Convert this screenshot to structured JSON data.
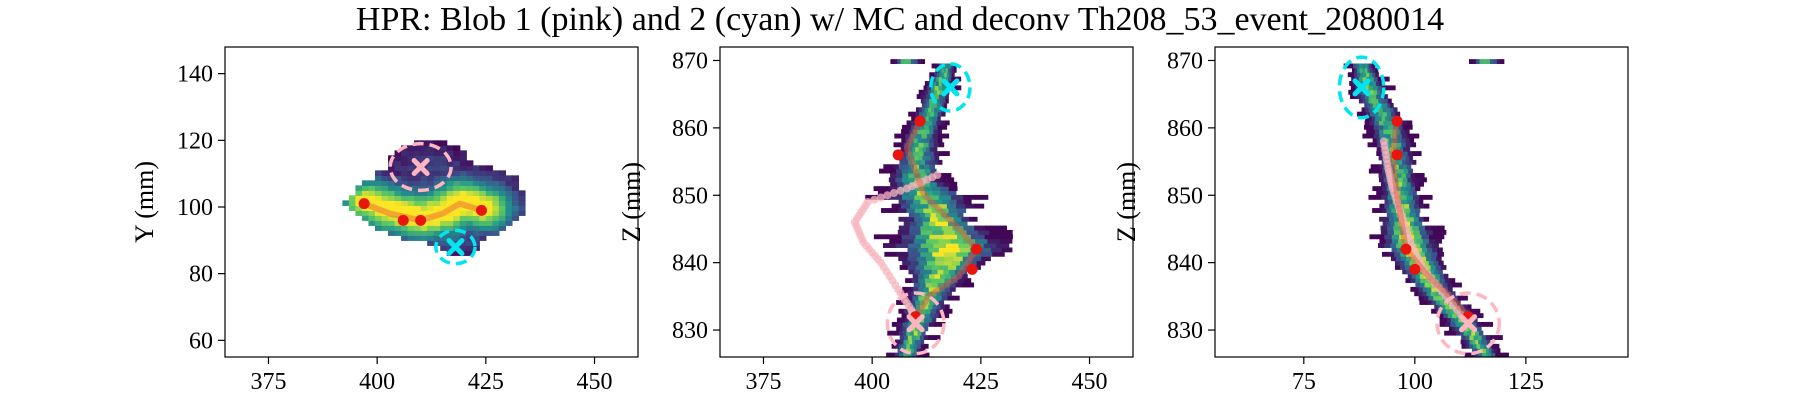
{
  "figure": {
    "title": "HPR: Blob 1 (pink) and 2 (cyan) w/ MC and deconv Th208_53_event_2080014"
  },
  "colors": {
    "blob1": "#ffb6c1",
    "blob2": "#00e5f0",
    "voxel_colormap": [
      "#440154",
      "#3b528b",
      "#21918c",
      "#5ec962",
      "#fde725"
    ],
    "hpr_track": "#e6553a",
    "mc_track": "#f7b6bd",
    "extremes": "#e8150f"
  },
  "chart_data": [
    {
      "type": "heatmap",
      "panel": "XY projection",
      "title": "",
      "xlabel": "",
      "ylabel": "Y (mm)",
      "xlim": [
        365,
        460
      ],
      "ylim": [
        55,
        148
      ],
      "xticks": [
        375,
        400,
        425,
        450
      ],
      "yticks": [
        60,
        80,
        100,
        120,
        140
      ],
      "voxel_region": {
        "x_range": [
          394,
          434
        ],
        "y_range": [
          86,
          118
        ]
      },
      "blob1": {
        "x": 410,
        "y": 112,
        "rx": 7,
        "ry": 7
      },
      "blob2": {
        "x": 418,
        "y": 88,
        "rx": 4.5,
        "ry": 5
      },
      "red_points": [
        [
          397,
          101
        ],
        [
          406,
          96
        ],
        [
          410,
          96
        ],
        [
          424,
          99
        ]
      ],
      "hpr_track": [
        [
          397,
          101
        ],
        [
          403,
          98
        ],
        [
          410,
          96
        ],
        [
          415,
          98
        ],
        [
          419,
          101
        ],
        [
          424,
          99
        ]
      ]
    },
    {
      "type": "heatmap",
      "panel": "XZ projection",
      "title": "",
      "xlabel": "",
      "ylabel": "Z (mm)",
      "xlim": [
        365,
        460
      ],
      "ylim": [
        826,
        872
      ],
      "xticks": [
        375,
        400,
        425,
        450
      ],
      "yticks": [
        830,
        840,
        850,
        860,
        870
      ],
      "blob1": {
        "x": 410,
        "y": 831,
        "rx": 6.5,
        "ry": 4.5
      },
      "blob2": {
        "x": 418,
        "y": 866,
        "rx": 4.5,
        "ry": 3.5
      },
      "red_points": [
        [
          411,
          861
        ],
        [
          406,
          856
        ],
        [
          424,
          842
        ],
        [
          423,
          839
        ],
        [
          410,
          832
        ]
      ],
      "hpr_track": [
        [
          411,
          861
        ],
        [
          408,
          857
        ],
        [
          412,
          850
        ],
        [
          420,
          845
        ],
        [
          424,
          842
        ],
        [
          420,
          838
        ],
        [
          413,
          835
        ],
        [
          410,
          832
        ]
      ],
      "mc_track": [
        [
          415,
          853
        ],
        [
          408,
          851
        ],
        [
          399,
          849
        ],
        [
          396,
          846
        ],
        [
          398,
          843
        ],
        [
          402,
          840
        ],
        [
          406,
          836
        ],
        [
          409,
          833
        ],
        [
          410,
          831
        ]
      ]
    },
    {
      "type": "heatmap",
      "panel": "YZ projection",
      "title": "",
      "xlabel": "",
      "ylabel": "Z (mm)",
      "xlim": [
        55,
        148
      ],
      "ylim": [
        826,
        872
      ],
      "xticks": [
        75,
        100,
        125
      ],
      "yticks": [
        830,
        840,
        850,
        860,
        870
      ],
      "blob1": {
        "x": 112,
        "y": 831,
        "rx": 7,
        "ry": 4.5
      },
      "blob2": {
        "x": 88,
        "y": 866,
        "rx": 5,
        "ry": 4.5
      },
      "red_points": [
        [
          96,
          861
        ],
        [
          96,
          856
        ],
        [
          98,
          842
        ],
        [
          100,
          839
        ],
        [
          112,
          832
        ]
      ],
      "hpr_track": [
        [
          96,
          861
        ],
        [
          95,
          856
        ],
        [
          96,
          850
        ],
        [
          97,
          846
        ],
        [
          98,
          842
        ],
        [
          103,
          838
        ],
        [
          108,
          835
        ],
        [
          112,
          832
        ]
      ],
      "mc_track": [
        [
          93,
          858
        ],
        [
          94,
          854
        ],
        [
          95,
          851
        ],
        [
          97,
          847
        ],
        [
          99,
          843
        ],
        [
          102,
          839
        ],
        [
          107,
          835
        ],
        [
          112,
          831
        ]
      ]
    }
  ]
}
